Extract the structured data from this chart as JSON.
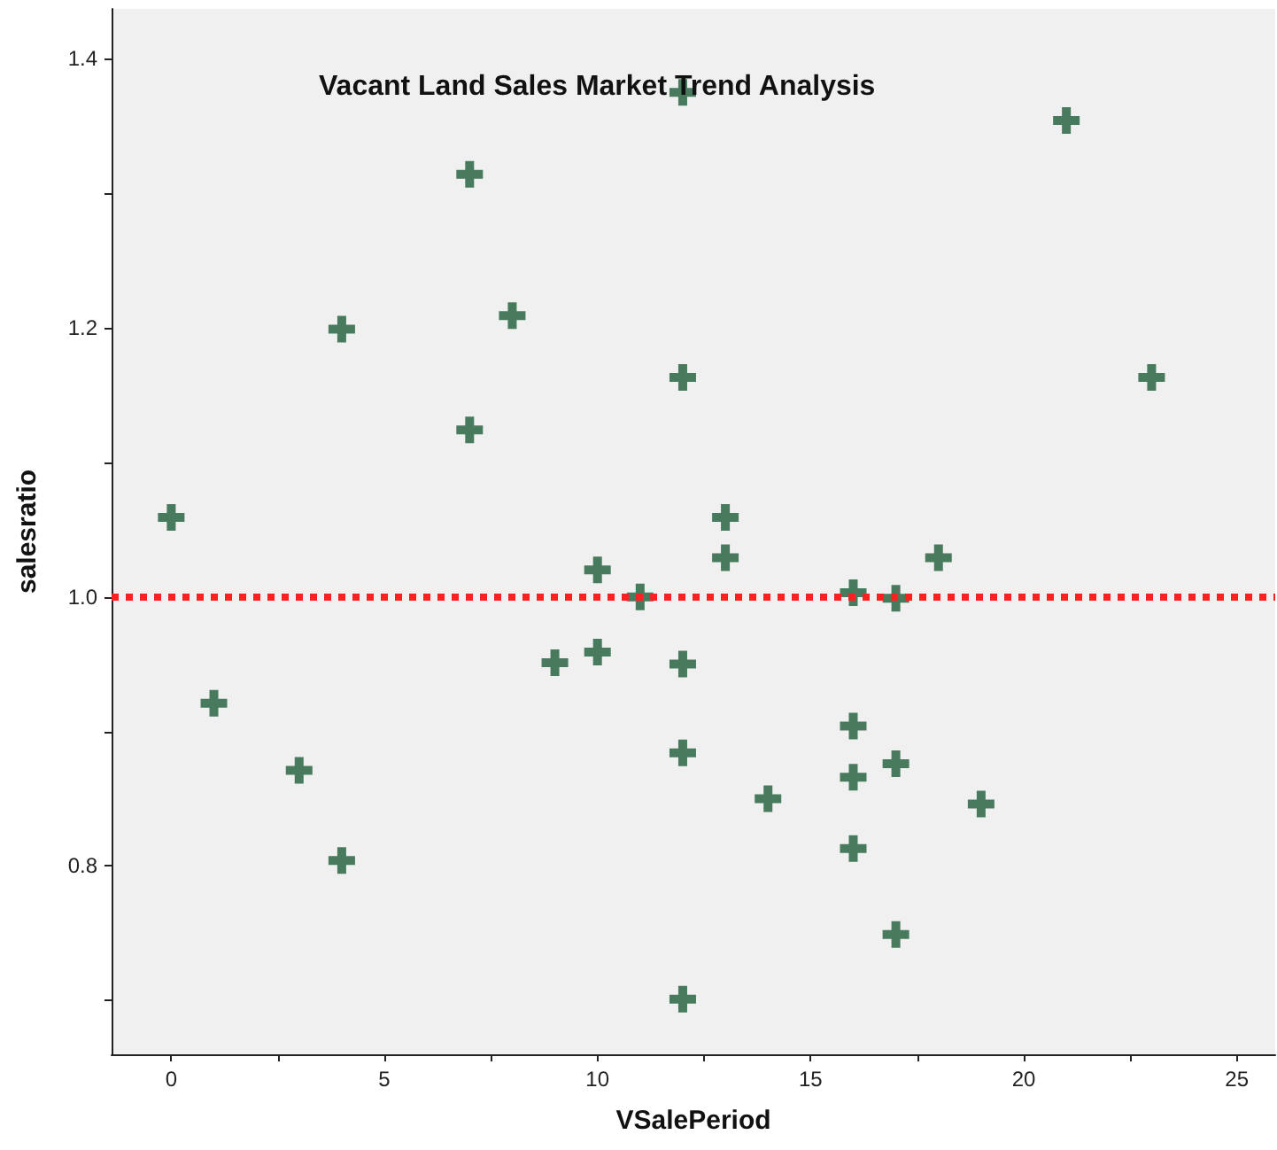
{
  "chart_data": {
    "type": "scatter",
    "title": "Vacant Land Sales Market Trend Analysis",
    "xlabel": "VSalePeriod",
    "ylabel": "salesratio",
    "x": [
      0,
      1,
      3,
      4,
      4,
      7,
      7,
      8,
      9,
      10,
      10,
      11,
      12,
      12,
      12,
      12,
      12,
      13,
      13,
      14,
      16,
      16,
      16,
      16,
      17,
      17,
      17,
      18,
      19,
      21,
      23
    ],
    "values": [
      1.059,
      0.921,
      0.871,
      0.804,
      1.199,
      1.314,
      1.124,
      1.209,
      0.951,
      1.02,
      0.959,
      1.0,
      1.375,
      1.163,
      0.95,
      0.884,
      0.701,
      1.059,
      1.029,
      0.85,
      1.003,
      0.904,
      0.866,
      0.813,
      0.999,
      0.876,
      0.749,
      1.029,
      0.846,
      1.354,
      1.163
    ],
    "color": "#1e5e3a",
    "marker": "cross",
    "xlim": [
      -1.4,
      25.9
    ],
    "ylim": [
      0.66,
      1.437
    ],
    "xticks": [
      0,
      {
        "value": 2.5,
        "label": null
      },
      5,
      {
        "value": 7.5,
        "label": null
      },
      10,
      {
        "value": 12.5,
        "label": null
      },
      15,
      {
        "value": 17.5,
        "label": null
      },
      20,
      {
        "value": 22.5,
        "label": null
      },
      25
    ],
    "yticks": [
      {
        "value": 0.7,
        "label": null
      },
      {
        "value": 0.8,
        "label": "0.8"
      },
      {
        "value": 0.9,
        "label": null
      },
      {
        "value": 1.0,
        "label": "1.0"
      },
      {
        "value": 1.1,
        "label": null
      },
      {
        "value": 1.2,
        "label": "1.2"
      },
      {
        "value": 1.3,
        "label": null
      },
      {
        "value": 1.4,
        "label": "1.4"
      }
    ],
    "ref_lines": [
      {
        "axis": "y",
        "value": 1.0,
        "color": "#ff2020",
        "line_style": "dotted"
      }
    ],
    "grid": false
  }
}
